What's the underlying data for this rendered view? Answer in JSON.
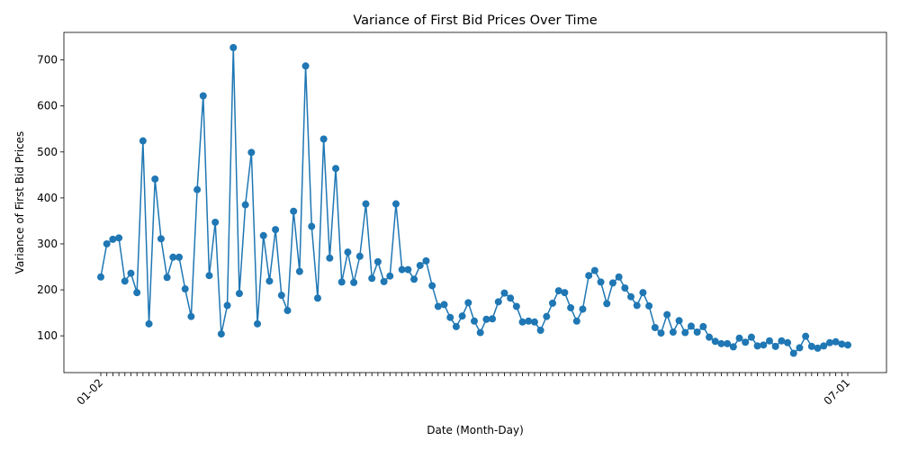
{
  "chart_data": {
    "type": "line",
    "title": "Variance of First Bid Prices Over Time",
    "xlabel": "Date (Month-Day)",
    "ylabel": "Variance of First Bid Prices",
    "ylim": [
      20,
      760
    ],
    "yticks": [
      100,
      200,
      300,
      400,
      500,
      600,
      700
    ],
    "grid": false,
    "legend": "none",
    "line_color": "#1f77b4",
    "x_first_label": "01-02",
    "x_last_label": "07-01",
    "values": [
      228,
      300,
      310,
      313,
      219,
      236,
      194,
      524,
      126,
      441,
      311,
      227,
      271,
      271,
      202,
      142,
      418,
      622,
      231,
      347,
      104,
      166,
      727,
      192,
      385,
      499,
      126,
      318,
      219,
      331,
      188,
      155,
      371,
      240,
      687,
      338,
      182,
      528,
      269,
      464,
      217,
      282,
      216,
      273,
      387,
      225,
      261,
      218,
      230,
      387,
      244,
      244,
      223,
      253,
      263,
      209,
      164,
      168,
      140,
      120,
      143,
      172,
      132,
      107,
      136,
      137,
      174,
      193,
      182,
      164,
      130,
      132,
      130,
      112,
      142,
      171,
      198,
      194,
      161,
      132,
      158,
      231,
      242,
      217,
      170,
      215,
      228,
      204,
      185,
      166,
      194,
      165,
      118,
      106,
      146,
      108,
      133,
      107,
      121,
      108,
      120,
      97,
      88,
      83,
      83,
      76,
      95,
      86,
      97,
      78,
      80,
      89,
      77,
      89,
      85,
      62,
      74,
      99,
      77,
      73,
      78,
      85,
      87,
      82,
      80
    ]
  }
}
